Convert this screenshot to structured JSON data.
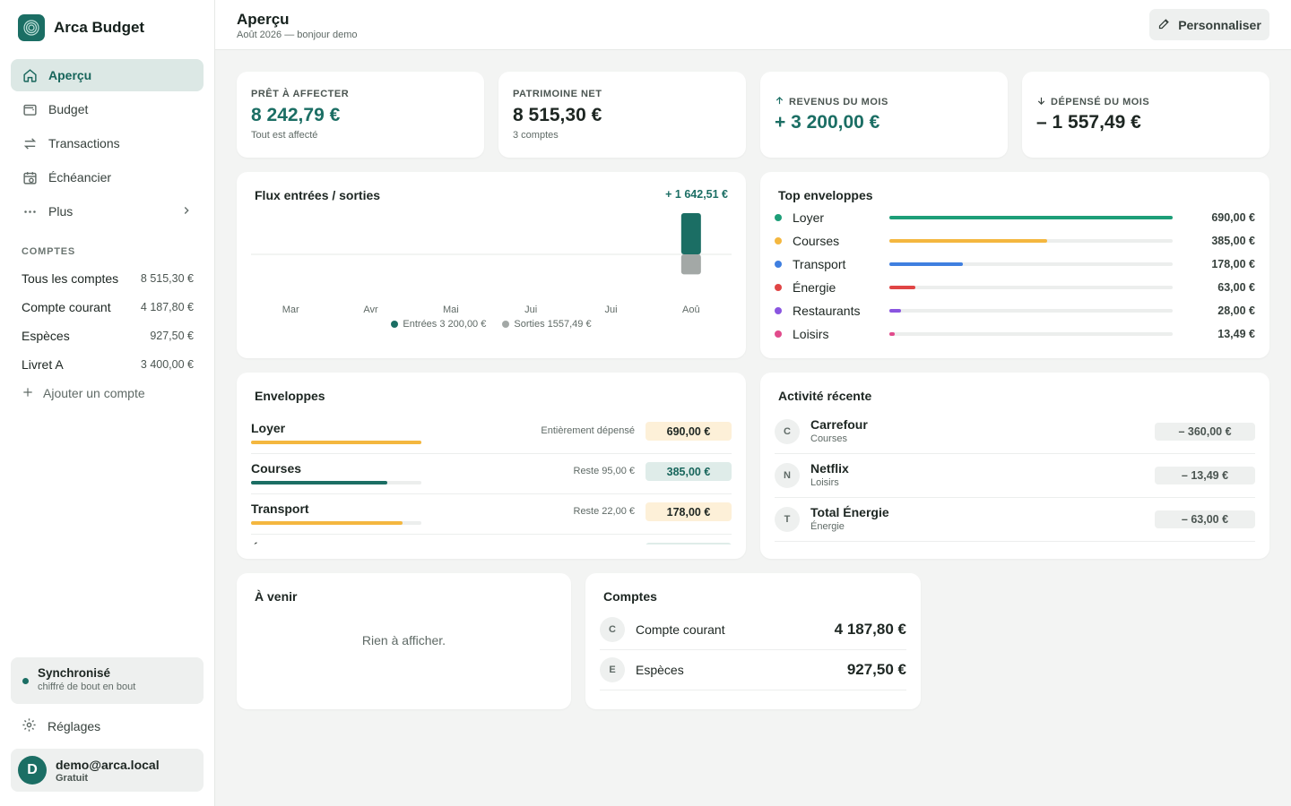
{
  "app": {
    "name": "Arca Budget"
  },
  "nav": [
    {
      "label": "Aperçu",
      "icon": "home-icon",
      "active": true
    },
    {
      "label": "Budget",
      "icon": "wallet-icon"
    },
    {
      "label": "Transactions",
      "icon": "arrows-swap-icon"
    },
    {
      "label": "Échéancier",
      "icon": "calendar-clock-icon"
    },
    {
      "label": "Plus",
      "icon": "more-dots-icon"
    }
  ],
  "sidebar": {
    "accounts_label": "COMPTES",
    "accounts": [
      {
        "name": "Tous les comptes",
        "value": "8 515,30 €"
      },
      {
        "name": "Compte courant",
        "value": "4 187,80 €"
      },
      {
        "name": "Espèces",
        "value": "927,50 €"
      },
      {
        "name": "Livret A",
        "value": "3 400,00 €"
      }
    ],
    "add_account": "Ajouter un compte",
    "sync_title": "Synchronisé",
    "sync_sub": "chiffré de bout en bout",
    "settings": "Réglages",
    "user_initial": "D",
    "user_email": "demo@arca.local",
    "user_plan": "Gratuit"
  },
  "header": {
    "title": "Aperçu",
    "subtitle": "Août 2026 — bonjour demo",
    "customize": "Personnaliser"
  },
  "kpis": [
    {
      "label": "PRÊT À AFFECTER",
      "value": "8 242,79 €",
      "sub": "Tout est affecté",
      "color": "#1b6e64"
    },
    {
      "label": "PATRIMOINE NET",
      "value": "8 515,30 €",
      "sub": "3 comptes",
      "color": "#1d2622"
    },
    {
      "label": "REVENUS DU MOIS",
      "value": "+ 3 200,00 €",
      "sub": "",
      "color": "#1b6e64",
      "icon": "arrow-up-icon"
    },
    {
      "label": "DÉPENSÉ DU MOIS",
      "value": "– 1 557,49 €",
      "sub": "",
      "color": "#1d2622",
      "icon": "arrow-down-icon"
    }
  ],
  "flux": {
    "title": "Flux entrées / sorties",
    "total": "+ 1 642,51 €",
    "legend_in": "Entrées 3 200,00 €",
    "legend_out": "Sorties 1557,49 €"
  },
  "chart_data": {
    "type": "bar",
    "categories": [
      "Mar",
      "Avr",
      "Mai",
      "Jui",
      "Jui",
      "Aoû"
    ],
    "series": [
      {
        "name": "Entrées",
        "values": [
          0,
          0,
          0,
          0,
          0,
          3200.0
        ],
        "color": "#1b6e64"
      },
      {
        "name": "Sorties",
        "values": [
          0,
          0,
          0,
          0,
          0,
          1557.49
        ],
        "color": "#a3a8a6"
      }
    ],
    "title": "Flux entrées / sorties"
  },
  "top_envelopes": {
    "title": "Top enveloppes",
    "items": [
      {
        "name": "Loyer",
        "value": "690,00 €",
        "amount": 690.0,
        "color": "#1d9e78"
      },
      {
        "name": "Courses",
        "value": "385,00 €",
        "amount": 385.0,
        "color": "#f4b73f"
      },
      {
        "name": "Transport",
        "value": "178,00 €",
        "amount": 178.0,
        "color": "#3f7fe0"
      },
      {
        "name": "Énergie",
        "value": "63,00 €",
        "amount": 63.0,
        "color": "#e04545"
      },
      {
        "name": "Restaurants",
        "value": "28,00 €",
        "amount": 28.0,
        "color": "#8a55e0"
      },
      {
        "name": "Loisirs",
        "value": "13,49 €",
        "amount": 13.49,
        "color": "#e14b8c"
      }
    ]
  },
  "envelopes": {
    "title": "Enveloppes",
    "items": [
      {
        "name": "Loyer",
        "note": "Entièrement dépensé",
        "value": "690,00 €",
        "progress": 1.0,
        "bar_color": "#f4b73f",
        "badge_bg": "#fdf0d8",
        "badge_color": "#1d2622"
      },
      {
        "name": "Courses",
        "note": "Reste 95,00 €",
        "value": "385,00 €",
        "progress": 0.8,
        "bar_color": "#1b6e64",
        "badge_bg": "#dfece9",
        "badge_color": "#17655b"
      },
      {
        "name": "Transport",
        "note": "Reste 22,00 €",
        "value": "178,00 €",
        "progress": 0.89,
        "bar_color": "#f4b73f",
        "badge_bg": "#fdf0d8",
        "badge_color": "#1d2622"
      },
      {
        "name": "Énergie",
        "note": "",
        "value": "",
        "progress": 0,
        "bar_color": "#f4b73f",
        "badge_bg": "#dfece9",
        "badge_color": "#17655b"
      }
    ]
  },
  "activity": {
    "title": "Activité récente",
    "items": [
      {
        "initial": "C",
        "name": "Carrefour",
        "category": "Courses",
        "amount": "– 360,00 €"
      },
      {
        "initial": "N",
        "name": "Netflix",
        "category": "Loisirs",
        "amount": "– 13,49 €"
      },
      {
        "initial": "T",
        "name": "Total Énergie",
        "category": "Énergie",
        "amount": "– 63,00 €"
      }
    ]
  },
  "upcoming": {
    "title": "À venir",
    "empty": "Rien à afficher."
  },
  "accounts_card": {
    "title": "Comptes",
    "items": [
      {
        "initial": "C",
        "name": "Compte courant",
        "value": "4 187,80 €"
      },
      {
        "initial": "E",
        "name": "Espèces",
        "value": "927,50 €"
      }
    ]
  }
}
